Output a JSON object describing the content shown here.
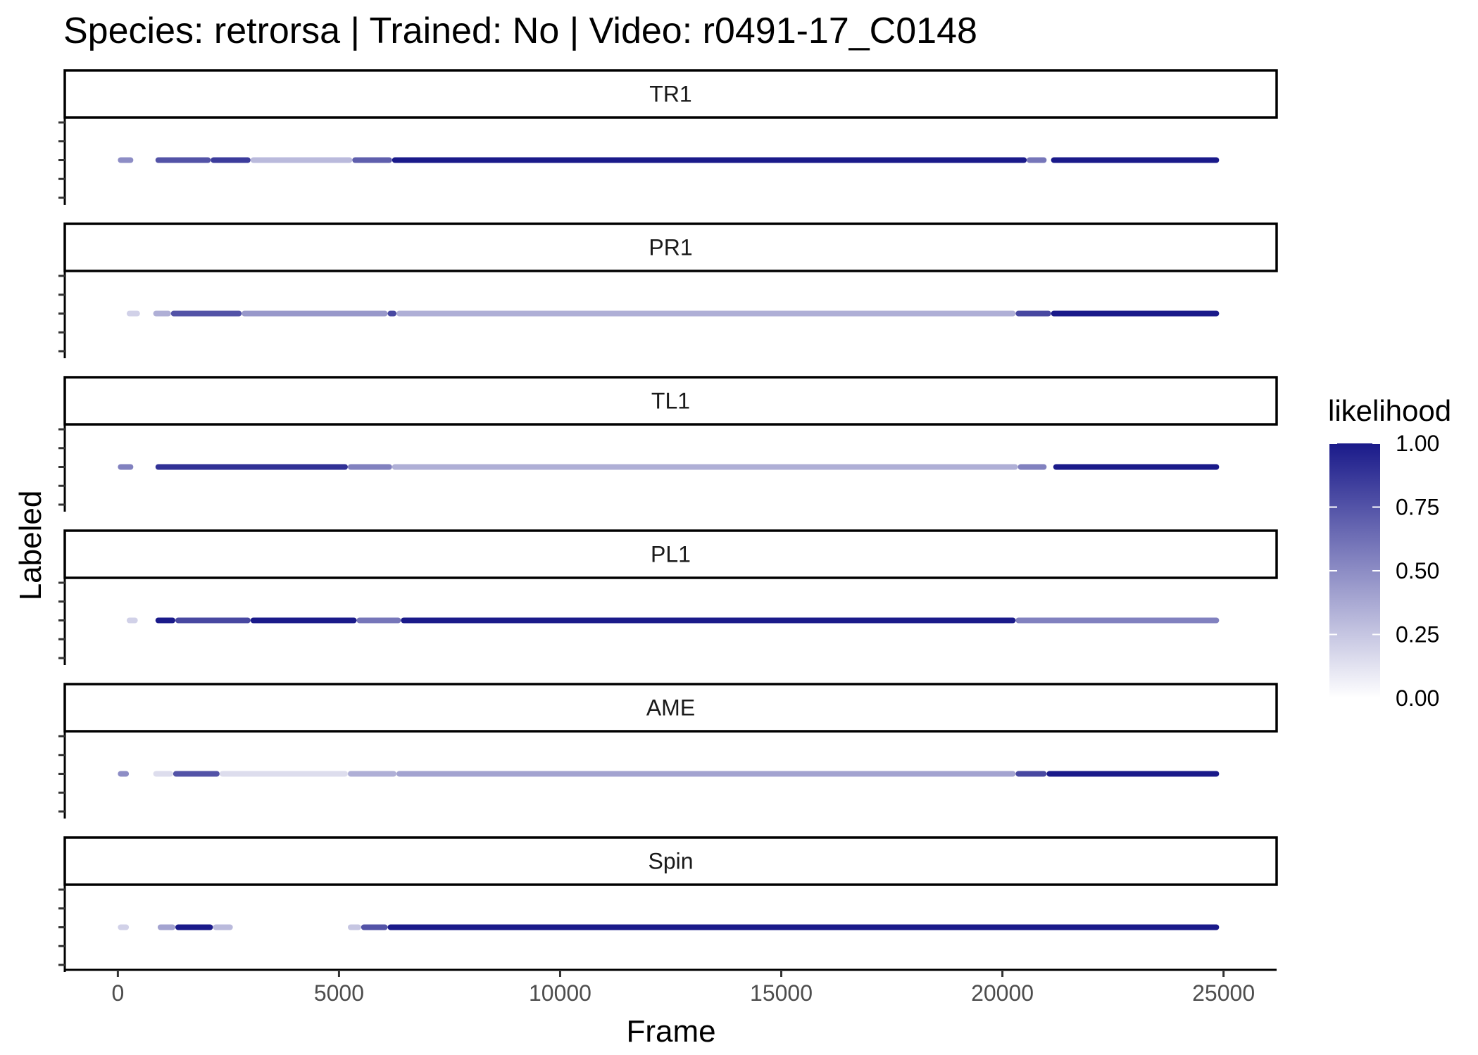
{
  "chart_data": {
    "type": "scatter",
    "title": "Species: retrorsa | Trained: No | Video: r0491-17_C0148",
    "xlabel": "Frame",
    "ylabel": "Labeled",
    "xlim": [
      -1200,
      26200
    ],
    "x_ticks": [
      0,
      5000,
      10000,
      15000,
      20000,
      25000
    ],
    "x_tick_labels": [
      "0",
      "5000",
      "10000",
      "15000",
      "20000",
      "25000"
    ],
    "grid": false,
    "legend": {
      "title": "likelihood",
      "position": "right",
      "low_color": "#ffffff",
      "high_color": "#1a1a8a",
      "ticks": [
        1.0,
        0.75,
        0.5,
        0.25,
        0.0
      ],
      "tick_labels": [
        "1.00",
        "0.75",
        "0.50",
        "0.25",
        "0.00"
      ]
    },
    "panels": [
      {
        "name": "TR1",
        "segments": [
          {
            "x": [
              0,
              350
            ],
            "likelihood": 0.5
          },
          {
            "x": [
              850,
              2100
            ],
            "likelihood": 0.75
          },
          {
            "x": [
              2100,
              3000
            ],
            "likelihood": 0.85
          },
          {
            "x": [
              3000,
              5300
            ],
            "likelihood": 0.3
          },
          {
            "x": [
              5300,
              6200
            ],
            "likelihood": 0.7
          },
          {
            "x": [
              6200,
              20550
            ],
            "likelihood": 1.0
          },
          {
            "x": [
              20550,
              21000
            ],
            "likelihood": 0.6
          },
          {
            "x": [
              21100,
              24900
            ],
            "likelihood": 1.0
          }
        ]
      },
      {
        "name": "PR1",
        "segments": [
          {
            "x": [
              200,
              500
            ],
            "likelihood": 0.2
          },
          {
            "x": [
              800,
              1200
            ],
            "likelihood": 0.35
          },
          {
            "x": [
              1200,
              2800
            ],
            "likelihood": 0.75
          },
          {
            "x": [
              2800,
              6100
            ],
            "likelihood": 0.45
          },
          {
            "x": [
              6100,
              6300
            ],
            "likelihood": 0.8
          },
          {
            "x": [
              6300,
              20300
            ],
            "likelihood": 0.35
          },
          {
            "x": [
              20300,
              21100
            ],
            "likelihood": 0.8
          },
          {
            "x": [
              21100,
              24900
            ],
            "likelihood": 1.0
          }
        ]
      },
      {
        "name": "TL1",
        "segments": [
          {
            "x": [
              0,
              350
            ],
            "likelihood": 0.55
          },
          {
            "x": [
              850,
              5200
            ],
            "likelihood": 0.9
          },
          {
            "x": [
              5200,
              6200
            ],
            "likelihood": 0.55
          },
          {
            "x": [
              6200,
              20350
            ],
            "likelihood": 0.35
          },
          {
            "x": [
              20350,
              21000
            ],
            "likelihood": 0.55
          },
          {
            "x": [
              21150,
              24900
            ],
            "likelihood": 1.0
          }
        ]
      },
      {
        "name": "PL1",
        "segments": [
          {
            "x": [
              200,
              450
            ],
            "likelihood": 0.2
          },
          {
            "x": [
              850,
              1300
            ],
            "likelihood": 1.0
          },
          {
            "x": [
              1300,
              3000
            ],
            "likelihood": 0.8
          },
          {
            "x": [
              3000,
              5400
            ],
            "likelihood": 1.0
          },
          {
            "x": [
              5400,
              6400
            ],
            "likelihood": 0.6
          },
          {
            "x": [
              6400,
              20300
            ],
            "likelihood": 1.0
          },
          {
            "x": [
              20300,
              24900
            ],
            "likelihood": 0.55
          }
        ]
      },
      {
        "name": "AME",
        "segments": [
          {
            "x": [
              0,
              250
            ],
            "likelihood": 0.5
          },
          {
            "x": [
              800,
              1250
            ],
            "likelihood": 0.15
          },
          {
            "x": [
              1250,
              2300
            ],
            "likelihood": 0.75
          },
          {
            "x": [
              2300,
              5200
            ],
            "likelihood": 0.15
          },
          {
            "x": [
              5200,
              6300
            ],
            "likelihood": 0.35
          },
          {
            "x": [
              6300,
              20300
            ],
            "likelihood": 0.4
          },
          {
            "x": [
              20300,
              21000
            ],
            "likelihood": 0.8
          },
          {
            "x": [
              21000,
              24900
            ],
            "likelihood": 1.0
          }
        ]
      },
      {
        "name": "Spin",
        "segments": [
          {
            "x": [
              0,
              250
            ],
            "likelihood": 0.2
          },
          {
            "x": [
              900,
              1300
            ],
            "likelihood": 0.4
          },
          {
            "x": [
              1300,
              2150
            ],
            "likelihood": 1.0
          },
          {
            "x": [
              2150,
              2600
            ],
            "likelihood": 0.3
          },
          {
            "x": [
              5200,
              5500
            ],
            "likelihood": 0.25
          },
          {
            "x": [
              5500,
              6100
            ],
            "likelihood": 0.75
          },
          {
            "x": [
              6100,
              24900
            ],
            "likelihood": 1.0
          }
        ]
      }
    ]
  }
}
